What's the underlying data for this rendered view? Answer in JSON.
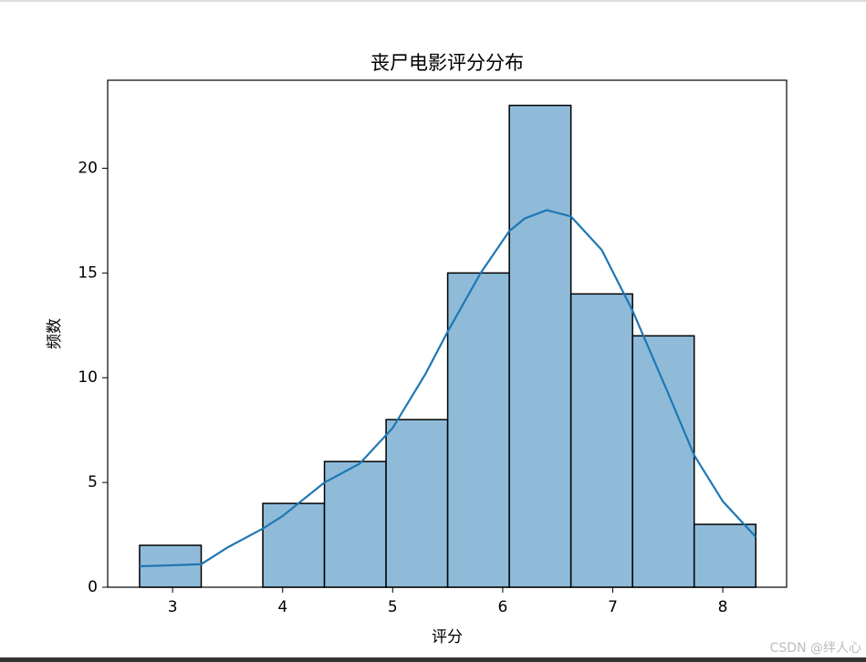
{
  "chart_data": {
    "type": "histogram",
    "title": "丧尸电影评分分布",
    "xlabel": "评分",
    "ylabel": "频数",
    "bins": [
      2.7,
      3.26,
      3.82,
      4.38,
      4.94,
      5.5,
      6.06,
      6.62,
      7.18,
      7.74,
      8.3
    ],
    "values": [
      2,
      0,
      4,
      6,
      8,
      15,
      23,
      14,
      12,
      3
    ],
    "color": "#8fbbd9",
    "edgecolor": "#000000",
    "kde": {
      "color": "#1f77b4",
      "x": [
        2.7,
        3.0,
        3.26,
        3.5,
        3.82,
        4.0,
        4.38,
        4.7,
        5.0,
        5.3,
        5.5,
        5.8,
        6.06,
        6.2,
        6.4,
        6.62,
        6.9,
        7.18,
        7.5,
        7.74,
        8.0,
        8.3
      ],
      "values": [
        1.0,
        1.05,
        1.1,
        1.9,
        2.8,
        3.4,
        5.0,
        5.9,
        7.6,
        10.2,
        12.2,
        15.0,
        17.0,
        17.6,
        18.0,
        17.7,
        16.1,
        13.2,
        9.3,
        6.3,
        4.1,
        2.4
      ]
    },
    "xlim": [
      2.41,
      8.58
    ],
    "ylim": [
      0,
      24.2
    ],
    "xticks": [
      3,
      4,
      5,
      6,
      7,
      8
    ],
    "yticks": [
      0,
      5,
      10,
      15,
      20
    ],
    "watermark": "CSDN @绊人心"
  }
}
